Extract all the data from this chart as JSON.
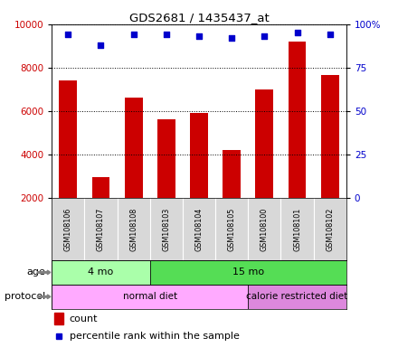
{
  "title": "GDS2681 / 1435437_at",
  "samples": [
    "GSM108106",
    "GSM108107",
    "GSM108108",
    "GSM108103",
    "GSM108104",
    "GSM108105",
    "GSM108100",
    "GSM108101",
    "GSM108102"
  ],
  "counts": [
    7400,
    2950,
    6600,
    5600,
    5900,
    4200,
    7000,
    9200,
    7650
  ],
  "percentile_ranks": [
    94,
    88,
    94,
    94,
    93,
    92,
    93,
    95,
    94
  ],
  "ylim_left": [
    2000,
    10000
  ],
  "ylim_right": [
    0,
    100
  ],
  "yticks_left": [
    2000,
    4000,
    6000,
    8000,
    10000
  ],
  "yticks_right": [
    0,
    25,
    50,
    75,
    100
  ],
  "bar_color": "#cc0000",
  "dot_color": "#0000cc",
  "age_groups": [
    {
      "label": "4 mo",
      "start": 0,
      "end": 3,
      "color": "#aaffaa"
    },
    {
      "label": "15 mo",
      "start": 3,
      "end": 9,
      "color": "#55dd55"
    }
  ],
  "protocol_groups": [
    {
      "label": "normal diet",
      "start": 0,
      "end": 6,
      "color": "#ffaaff"
    },
    {
      "label": "calorie restricted diet",
      "start": 6,
      "end": 9,
      "color": "#dd88dd"
    }
  ],
  "legend_count_label": "count",
  "legend_percentile_label": "percentile rank within the sample",
  "age_label": "age",
  "protocol_label": "protocol",
  "bar_color_hex": "#cc0000",
  "dot_color_hex": "#0000cc",
  "axis_label_color_left": "#cc0000",
  "axis_label_color_right": "#0000cc",
  "sample_label_bg": "#d8d8d8"
}
